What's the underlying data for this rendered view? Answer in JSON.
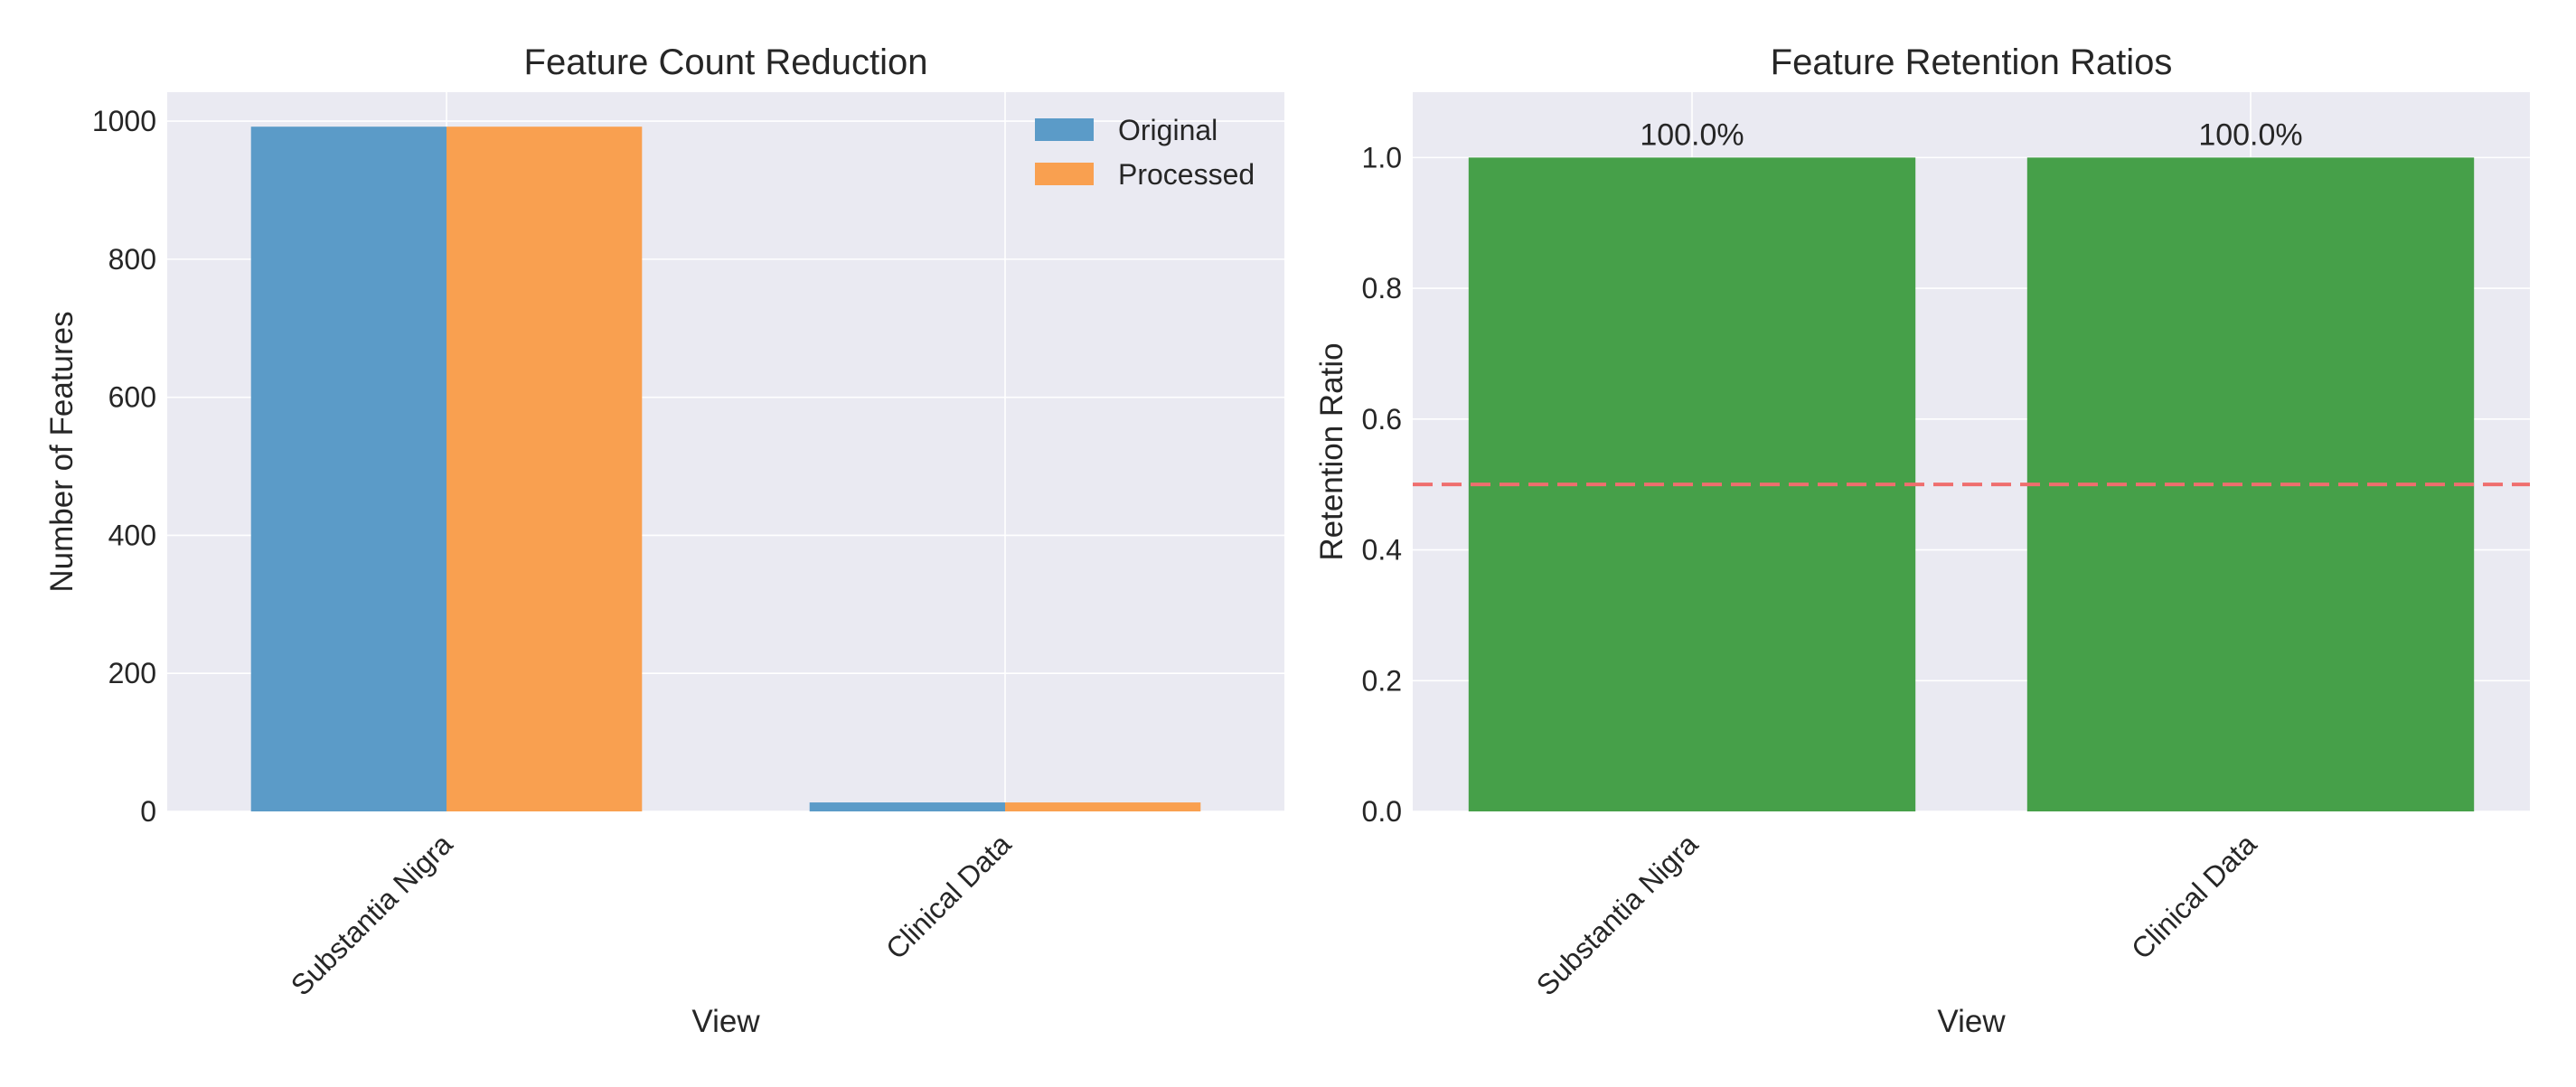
{
  "chart_data": [
    {
      "type": "bar",
      "title": "Feature Count Reduction",
      "xlabel": "View",
      "ylabel": "Number of Features",
      "categories": [
        "Substantia Nigra",
        "Clinical Data"
      ],
      "series": [
        {
          "name": "Original",
          "values": [
            992,
            13
          ],
          "color": "#5b9bc8"
        },
        {
          "name": "Processed",
          "values": [
            992,
            13
          ],
          "color": "#f9a050"
        }
      ],
      "ylim": [
        0,
        1042
      ],
      "yticks": [
        0,
        200,
        400,
        600,
        800,
        1000
      ],
      "ytick_labels": [
        "0",
        "200",
        "400",
        "600",
        "800",
        "1000"
      ],
      "grid": true,
      "legend": "top-right"
    },
    {
      "type": "bar",
      "title": "Feature Retention Ratios",
      "xlabel": "View",
      "ylabel": "Retention Ratio",
      "categories": [
        "Substantia Nigra",
        "Clinical Data"
      ],
      "values": [
        1.0,
        1.0
      ],
      "value_labels": [
        "100.0%",
        "100.0%"
      ],
      "color": "#46a049",
      "reference_line": {
        "y": 0.5,
        "color": "#ef6e6e",
        "style": "dashed"
      },
      "ylim": [
        0,
        1.1
      ],
      "yticks": [
        0.0,
        0.2,
        0.4,
        0.6,
        0.8,
        1.0
      ],
      "ytick_labels": [
        "0.0",
        "0.2",
        "0.4",
        "0.6",
        "0.8",
        "1.0"
      ],
      "grid": true
    }
  ],
  "colors": {
    "panel_background": "#eaeaf2",
    "grid": "#ffffff",
    "text": "#262626"
  }
}
